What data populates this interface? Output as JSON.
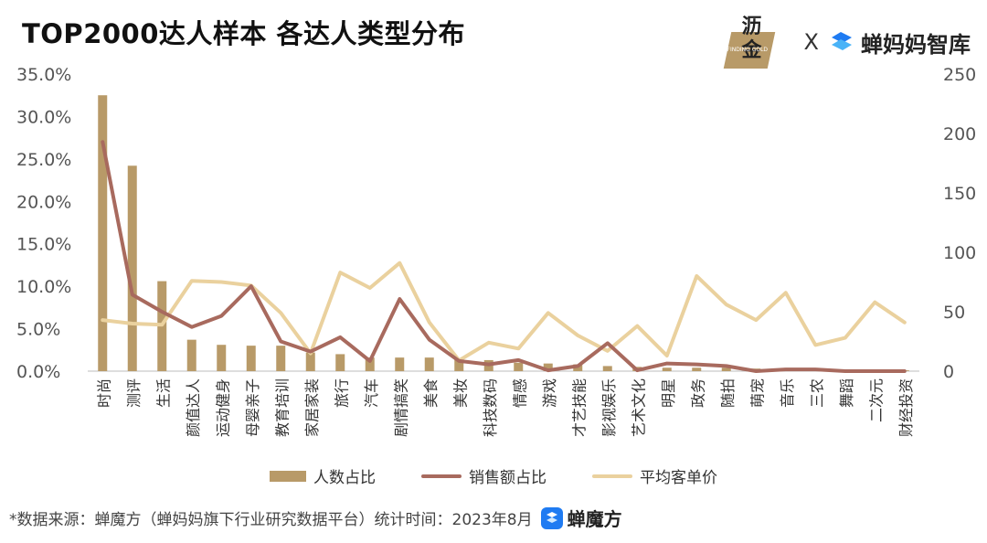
{
  "title": "TOP2000达人样本 各达人类型分布",
  "brand": {
    "left_name": "沥金",
    "left_sub": "FINDING GOLD",
    "separator": "X",
    "right_name": "蝉妈妈智库"
  },
  "footer": {
    "source": "*数据来源：蝉魔方（蝉妈妈旗下行业研究数据平台）统计时间：2023年8月",
    "logo_name": "蝉魔方"
  },
  "colors": {
    "bar": "#b89a68",
    "sales_line": "#a86a5e",
    "price_line": "#ead19e",
    "axis_text": "#555555"
  },
  "chart_data": {
    "type": "bar",
    "categories": [
      "时尚",
      "测评",
      "生活",
      "颜值达人",
      "运动健身",
      "母婴亲子",
      "教育培训",
      "家居家装",
      "旅行",
      "汽车",
      "剧情搞笑",
      "美食",
      "美妆",
      "科技数码",
      "情感",
      "游戏",
      "才艺技能",
      "影视娱乐",
      "艺术文化",
      "明星",
      "政务",
      "随拍",
      "萌宠",
      "音乐",
      "三农",
      "舞蹈",
      "二次元",
      "财经投资"
    ],
    "y_left": {
      "min": 0,
      "max": 35,
      "ticks": [
        "0.0%",
        "5.0%",
        "10.0%",
        "15.0%",
        "20.0%",
        "25.0%",
        "30.0%",
        "35.0%"
      ],
      "tick_values": [
        0,
        5,
        10,
        15,
        20,
        25,
        30,
        35
      ]
    },
    "y_right": {
      "min": 0,
      "max": 250,
      "ticks": [
        "0",
        "50",
        "100",
        "150",
        "200",
        "250"
      ],
      "tick_values": [
        0,
        50,
        100,
        150,
        200,
        250
      ]
    },
    "series": [
      {
        "name": "人数占比",
        "type": "bar",
        "axis": "left",
        "values": [
          32.5,
          24.2,
          10.6,
          3.7,
          3.1,
          3.0,
          3.0,
          2.2,
          2.0,
          1.6,
          1.6,
          1.6,
          1.4,
          1.3,
          1.0,
          0.9,
          0.8,
          0.6,
          0.5,
          0.4,
          0.4,
          0.4,
          0.3,
          0.3,
          0.3,
          0.2,
          0.2,
          0.1
        ]
      },
      {
        "name": "销售额占比",
        "type": "line",
        "axis": "left",
        "values": [
          27.0,
          9.0,
          7.0,
          5.2,
          6.5,
          10.0,
          3.5,
          2.3,
          4.0,
          1.2,
          8.5,
          3.7,
          1.2,
          0.8,
          1.3,
          0.1,
          0.6,
          3.3,
          0.1,
          0.9,
          0.8,
          0.6,
          0.0,
          0.2,
          0.2,
          0.0,
          0.0,
          0.0
        ]
      },
      {
        "name": "平均客单价",
        "type": "line",
        "axis": "right",
        "values": [
          43,
          40,
          39,
          76,
          75,
          72,
          49,
          15,
          83,
          70,
          91,
          41,
          9,
          24,
          19,
          49,
          30,
          17,
          38,
          13,
          80,
          56,
          43,
          66,
          22,
          28,
          58,
          41
        ]
      }
    ]
  }
}
